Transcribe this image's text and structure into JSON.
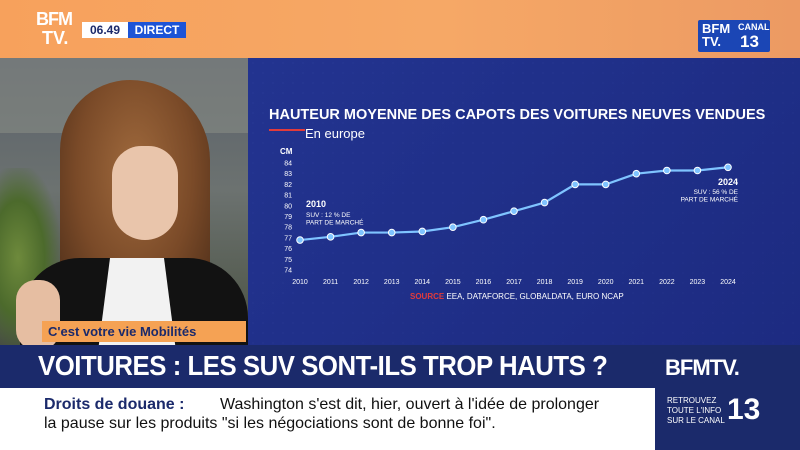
{
  "top_bar": {
    "channel_logo_line1": "BFM",
    "channel_logo_line2": "TV.",
    "time": "06.49",
    "live_label": "DIRECT",
    "corner_logo_brand": "BFM TV.",
    "corner_logo_canal": "CANAL",
    "corner_logo_number": "13"
  },
  "colors": {
    "top_bar": "#f6a866",
    "navy": "#1b2a6b",
    "accent_blue": "#1d54d6",
    "accent_red": "#e23b3b",
    "line": "#7fc4ff"
  },
  "chart_data": {
    "type": "line",
    "title": "HAUTEUR MOYENNE DES CAPOTS DES VOITURES NEUVES VENDUES",
    "subtitle": "En europe",
    "ylabel": "CM",
    "x": [
      2010,
      2011,
      2012,
      2013,
      2014,
      2015,
      2016,
      2017,
      2018,
      2019,
      2020,
      2021,
      2022,
      2023,
      2024
    ],
    "values": [
      76.8,
      77.1,
      77.5,
      77.5,
      77.6,
      78.0,
      78.7,
      79.5,
      80.3,
      82.0,
      82.0,
      83.0,
      83.3,
      83.3,
      83.6
    ],
    "ylim": [
      74,
      84
    ],
    "yticks": [
      74,
      75,
      76,
      77,
      78,
      79,
      80,
      81,
      82,
      83,
      84
    ],
    "grid": false,
    "annotations": [
      {
        "at": 2010,
        "title": "2010",
        "text": "SUV : 12 % DE\nPART DE MARCHÉ"
      },
      {
        "at": 2024,
        "title": "2024",
        "text": "SUV : 56 % DE\nPART DE MARCHÉ"
      }
    ],
    "source_label": "SOURCE",
    "source_text": " EEA, DATAFORCE, GLOBALDATA, EURO NCAP"
  },
  "banner": {
    "tag": "C'est votre vie Mobilités",
    "headline": "VOITURES : LES SUV SONT-ILS TROP HAUTS ?"
  },
  "brand_box": {
    "logo": "BFMTV.",
    "retrouvez_line1": "RETROUVEZ",
    "retrouvez_line2": "TOUTE L'INFO",
    "retrouvez_line3": "SUR LE CANAL",
    "channel_number": "13"
  },
  "ticker": {
    "label": "Droits de douane :",
    "line1": "Washington s'est dit, hier, ouvert à l'idée de prolonger",
    "line2": "la pause sur les produits \"si les négociations sont de bonne foi\"."
  }
}
